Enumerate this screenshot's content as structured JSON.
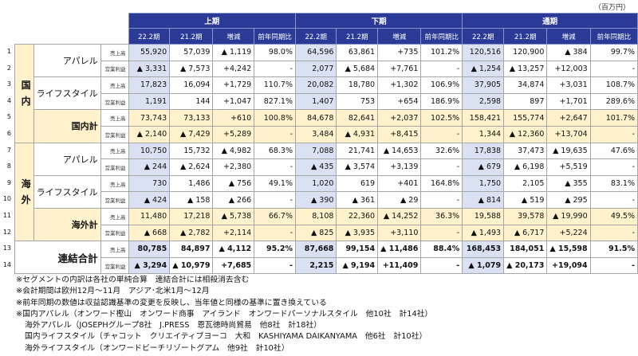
{
  "unit": "（百万円）",
  "periods": [
    "上期",
    "下期",
    "通期"
  ],
  "sub_headers": [
    "22.2期",
    "21.2期",
    "増減",
    "前年同期比"
  ],
  "metrics": {
    "sales": "売上高",
    "op": "営業利益"
  },
  "colors": {
    "header": "#2a3a96",
    "current": "#dae1f3",
    "subtotal": "#fff2cc"
  },
  "row_numbers": [
    "1",
    "2",
    "3",
    "4",
    "5",
    "6",
    "7",
    "8",
    "9",
    "10",
    "11",
    "12",
    "13",
    "14"
  ],
  "regions": [
    {
      "label": "国内",
      "segments": [
        {
          "label": "アパレル",
          "type": "seg",
          "rows": [
            [
              "55,920",
              "57,039",
              "▲ 1,119",
              "98.0%",
              "64,596",
              "63,861",
              "+735",
              "101.2%",
              "120,516",
              "120,900",
              "▲ 384",
              "99.7%"
            ],
            [
              "▲ 3,331",
              "▲ 7,573",
              "+4,242",
              "-",
              "2,077",
              "▲ 5,684",
              "+7,761",
              "-",
              "▲ 1,254",
              "▲ 13,257",
              "+12,003",
              "-"
            ]
          ]
        },
        {
          "label": "ライフスタイル",
          "type": "seg",
          "rows": [
            [
              "17,823",
              "16,094",
              "+1,729",
              "110.7%",
              "20,082",
              "18,780",
              "+1,302",
              "106.9%",
              "37,905",
              "34,874",
              "+3,031",
              "108.7%"
            ],
            [
              "1,191",
              "144",
              "+1,047",
              "827.1%",
              "1,407",
              "753",
              "+654",
              "186.9%",
              "2,598",
              "897",
              "+1,701",
              "289.6%"
            ]
          ]
        },
        {
          "label": "国内計",
          "type": "sub",
          "rows": [
            [
              "73,743",
              "73,133",
              "+610",
              "100.8%",
              "84,678",
              "82,641",
              "+2,037",
              "102.5%",
              "158,421",
              "155,774",
              "+2,647",
              "101.7%"
            ],
            [
              "▲ 2,140",
              "▲ 7,429",
              "+5,289",
              "-",
              "3,484",
              "▲ 4,931",
              "+8,415",
              "-",
              "1,344",
              "▲ 12,360",
              "+13,704",
              "-"
            ]
          ]
        }
      ]
    },
    {
      "label": "海外",
      "segments": [
        {
          "label": "アパレル",
          "type": "seg",
          "rows": [
            [
              "10,750",
              "15,732",
              "▲ 4,982",
              "68.3%",
              "7,088",
              "21,741",
              "▲ 14,653",
              "32.6%",
              "17,838",
              "37,473",
              "▲ 19,635",
              "47.6%"
            ],
            [
              "▲ 244",
              "▲ 2,624",
              "+2,380",
              "-",
              "▲ 435",
              "▲ 3,574",
              "+3,139",
              "-",
              "▲ 679",
              "▲ 6,198",
              "+5,519",
              "-"
            ]
          ]
        },
        {
          "label": "ライフスタイル",
          "type": "seg",
          "rows": [
            [
              "730",
              "1,486",
              "▲ 756",
              "49.1%",
              "1,020",
              "619",
              "+401",
              "164.8%",
              "1,750",
              "2,105",
              "▲ 355",
              "83.1%"
            ],
            [
              "▲ 424",
              "▲ 158",
              "▲ 266",
              "-",
              "▲ 390",
              "▲ 361",
              "▲ 29",
              "-",
              "▲ 814",
              "▲ 519",
              "▲ 295",
              "-"
            ]
          ]
        },
        {
          "label": "海外計",
          "type": "sub",
          "rows": [
            [
              "11,480",
              "17,218",
              "▲ 5,738",
              "66.7%",
              "8,108",
              "22,360",
              "▲ 14,252",
              "36.3%",
              "19,588",
              "39,578",
              "▲ 19,990",
              "49.5%"
            ],
            [
              "▲ 668",
              "▲ 2,782",
              "+2,114",
              "-",
              "▲ 825",
              "▲ 3,935",
              "+3,110",
              "-",
              "▲ 1,493",
              "▲ 6,717",
              "+5,224",
              "-"
            ]
          ]
        }
      ]
    }
  ],
  "total": {
    "label": "連結合計",
    "rows": [
      [
        "80,785",
        "84,897",
        "▲ 4,112",
        "95.2%",
        "87,668",
        "99,154",
        "▲ 11,486",
        "88.4%",
        "168,453",
        "184,051",
        "▲ 15,598",
        "91.5%"
      ],
      [
        "▲ 3,294",
        "▲ 10,979",
        "+7,685",
        "-",
        "2,215",
        "▲ 9,194",
        "+11,409",
        "-",
        "▲ 1,079",
        "▲ 20,173",
        "+19,094",
        "-"
      ]
    ]
  },
  "notes": [
    "※セグメントの内訳は各社の単純合算　連結合計には相殺消去含む",
    "※会計期間は欧州12月～11月　アジア･北米1月～12月",
    "※前年同期の数値は収益認識基準の変更を反映し、当年値と同様の基準に置き換えている",
    "※国内アパレル（オンワード樫山　オンワード商事　アイランド　オンワードパーソナルスタイル　他10社　計14社）",
    "海外アパレル（JOSEPHグループ8社　J.PRESS　恩瓦徳時尚貿易　他8社　計18社）",
    "国内ライフスタイル（チャコット　クリエイティブヨーコ　大和　KASHIYAMA DAIKANYAMA　他6社　計10社）",
    "海外ライフスタイル（オンワードビーチリゾートグアム　他9社　計10社）"
  ]
}
